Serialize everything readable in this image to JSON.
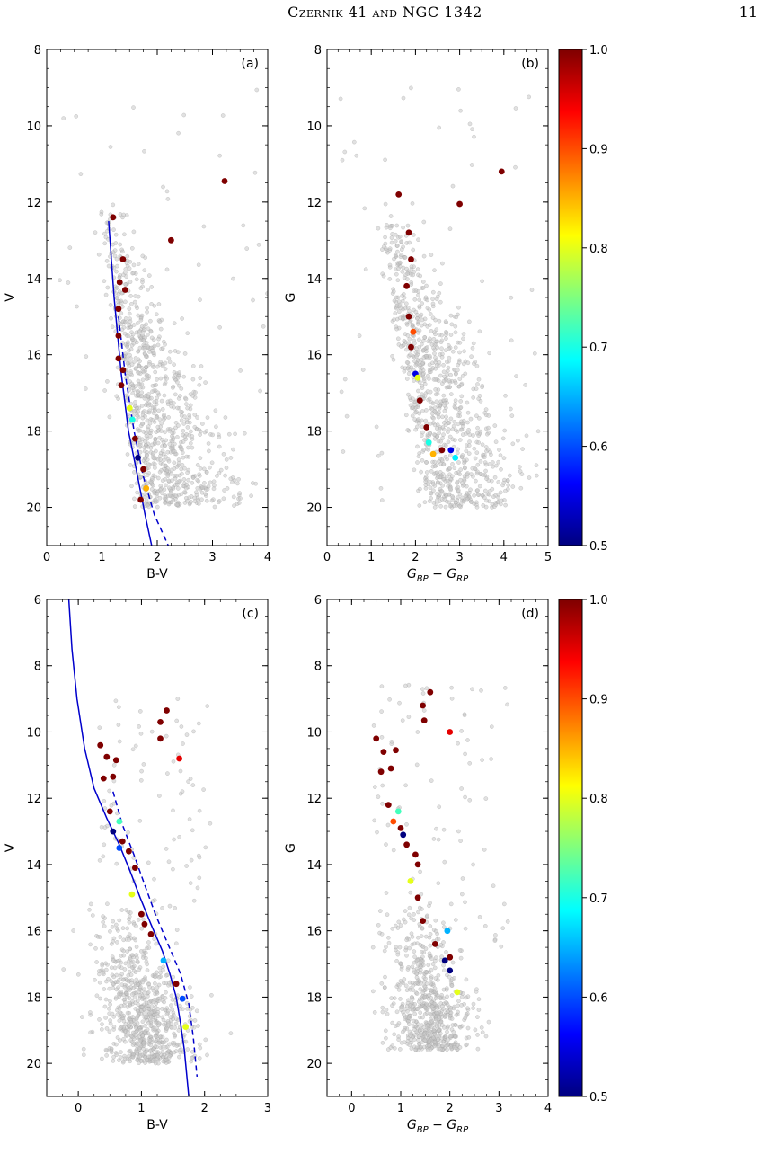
{
  "page": {
    "running_title": "Czernik 41 and NGC 1342",
    "page_number": "11"
  },
  "colorbar": {
    "colors": [
      "#00007f",
      "#0000ff",
      "#007fff",
      "#00ffff",
      "#7fff7f",
      "#ffff00",
      "#ff7f00",
      "#ff0000",
      "#7f0000"
    ],
    "ticks": [
      "0.5",
      "0.6",
      "0.7",
      "0.8",
      "0.9",
      "1.0"
    ],
    "range": [
      0.5,
      1.0
    ]
  },
  "chart_data": [
    {
      "type": "scatter",
      "panel_label": "(a)",
      "xlabel": "B-V",
      "ylabel": "V",
      "xlim": [
        0,
        4
      ],
      "ylim": [
        21,
        8
      ],
      "y_inverted": true,
      "xticks": [
        "0",
        "1",
        "2",
        "3",
        "4"
      ],
      "yticks": [
        "8",
        "10",
        "12",
        "14",
        "16",
        "18",
        "20"
      ],
      "field_color": "#999999",
      "members": [
        {
          "x": 3.22,
          "y": 11.45,
          "p": 1.0
        },
        {
          "x": 1.2,
          "y": 12.4,
          "p": 1.0
        },
        {
          "x": 2.25,
          "y": 13.0,
          "p": 1.0
        },
        {
          "x": 1.38,
          "y": 13.5,
          "p": 1.0
        },
        {
          "x": 1.32,
          "y": 14.1,
          "p": 1.0
        },
        {
          "x": 1.42,
          "y": 14.3,
          "p": 1.0
        },
        {
          "x": 1.3,
          "y": 14.8,
          "p": 1.0
        },
        {
          "x": 1.3,
          "y": 15.5,
          "p": 1.0
        },
        {
          "x": 1.3,
          "y": 16.1,
          "p": 1.0
        },
        {
          "x": 1.38,
          "y": 16.4,
          "p": 1.0
        },
        {
          "x": 1.35,
          "y": 16.8,
          "p": 1.0
        },
        {
          "x": 1.5,
          "y": 17.4,
          "p": 0.8
        },
        {
          "x": 1.55,
          "y": 17.7,
          "p": 0.7
        },
        {
          "x": 1.6,
          "y": 18.2,
          "p": 1.0
        },
        {
          "x": 1.65,
          "y": 18.7,
          "p": 0.5
        },
        {
          "x": 1.75,
          "y": 19.0,
          "p": 1.0
        },
        {
          "x": 1.8,
          "y": 19.5,
          "p": 0.85
        },
        {
          "x": 1.7,
          "y": 19.8,
          "p": 1.0
        }
      ],
      "isochrones": [
        {
          "style": "solid",
          "color": "#0000cc",
          "x": [
            1.12,
            1.22,
            1.35,
            1.48,
            1.62,
            1.78,
            1.9
          ],
          "y": [
            12.5,
            14.5,
            16.5,
            18.0,
            19.0,
            20.2,
            21.0
          ]
        },
        {
          "style": "dashed",
          "color": "#0000cc",
          "x": [
            1.3,
            1.42,
            1.58,
            1.75,
            1.95,
            2.2
          ],
          "y": [
            15.0,
            16.5,
            18.0,
            19.2,
            20.2,
            21.0
          ]
        }
      ]
    },
    {
      "type": "scatter",
      "panel_label": "(b)",
      "xlabel": "G_BP − G_RP",
      "ylabel": "G",
      "xlim": [
        0,
        5
      ],
      "ylim": [
        21,
        8
      ],
      "y_inverted": true,
      "xticks": [
        "0",
        "1",
        "2",
        "3",
        "4",
        "5"
      ],
      "yticks": [
        "8",
        "10",
        "12",
        "14",
        "16",
        "18",
        "20"
      ],
      "field_color": "#999999",
      "members": [
        {
          "x": 3.95,
          "y": 11.2,
          "p": 1.0
        },
        {
          "x": 1.62,
          "y": 11.8,
          "p": 1.0
        },
        {
          "x": 3.0,
          "y": 12.05,
          "p": 1.0
        },
        {
          "x": 1.85,
          "y": 12.8,
          "p": 1.0
        },
        {
          "x": 1.9,
          "y": 13.5,
          "p": 1.0
        },
        {
          "x": 1.8,
          "y": 14.2,
          "p": 1.0
        },
        {
          "x": 1.85,
          "y": 15.0,
          "p": 1.0
        },
        {
          "x": 1.95,
          "y": 15.4,
          "p": 0.9
        },
        {
          "x": 1.9,
          "y": 15.8,
          "p": 1.0
        },
        {
          "x": 2.0,
          "y": 16.5,
          "p": 0.55
        },
        {
          "x": 2.05,
          "y": 16.6,
          "p": 0.8
        },
        {
          "x": 2.1,
          "y": 17.2,
          "p": 1.0
        },
        {
          "x": 2.25,
          "y": 17.9,
          "p": 1.0
        },
        {
          "x": 2.3,
          "y": 18.3,
          "p": 0.7
        },
        {
          "x": 2.4,
          "y": 18.6,
          "p": 0.85
        },
        {
          "x": 2.6,
          "y": 18.5,
          "p": 1.0
        },
        {
          "x": 2.8,
          "y": 18.5,
          "p": 0.55
        },
        {
          "x": 2.9,
          "y": 18.7,
          "p": 0.68
        }
      ]
    },
    {
      "type": "scatter",
      "panel_label": "(c)",
      "xlabel": "B-V",
      "ylabel": "V",
      "xlim": [
        -0.5,
        3
      ],
      "ylim": [
        21,
        6
      ],
      "y_inverted": true,
      "xticks": [
        "0",
        "1",
        "2",
        "3"
      ],
      "yticks": [
        "6",
        "8",
        "10",
        "12",
        "14",
        "16",
        "18",
        "20"
      ],
      "field_color": "#999999",
      "members": [
        {
          "x": 1.4,
          "y": 9.35,
          "p": 1.0
        },
        {
          "x": 1.3,
          "y": 9.7,
          "p": 1.0
        },
        {
          "x": 1.3,
          "y": 10.2,
          "p": 1.0
        },
        {
          "x": 1.6,
          "y": 10.8,
          "p": 0.95
        },
        {
          "x": 0.35,
          "y": 10.4,
          "p": 1.0
        },
        {
          "x": 0.45,
          "y": 10.75,
          "p": 1.0
        },
        {
          "x": 0.6,
          "y": 10.85,
          "p": 1.0
        },
        {
          "x": 0.4,
          "y": 11.4,
          "p": 1.0
        },
        {
          "x": 0.55,
          "y": 11.35,
          "p": 1.0
        },
        {
          "x": 0.5,
          "y": 12.4,
          "p": 1.0
        },
        {
          "x": 0.65,
          "y": 12.7,
          "p": 0.72
        },
        {
          "x": 0.55,
          "y": 13.0,
          "p": 0.5
        },
        {
          "x": 0.7,
          "y": 13.3,
          "p": 1.0
        },
        {
          "x": 0.65,
          "y": 13.5,
          "p": 0.6
        },
        {
          "x": 0.8,
          "y": 13.6,
          "p": 1.0
        },
        {
          "x": 0.9,
          "y": 14.1,
          "p": 1.0
        },
        {
          "x": 0.85,
          "y": 14.9,
          "p": 0.8
        },
        {
          "x": 1.0,
          "y": 15.5,
          "p": 1.0
        },
        {
          "x": 1.05,
          "y": 15.8,
          "p": 1.0
        },
        {
          "x": 1.15,
          "y": 16.1,
          "p": 1.0
        },
        {
          "x": 1.35,
          "y": 16.9,
          "p": 0.65
        },
        {
          "x": 1.55,
          "y": 17.6,
          "p": 1.0
        },
        {
          "x": 1.65,
          "y": 18.05,
          "p": 0.6
        },
        {
          "x": 1.7,
          "y": 18.9,
          "p": 0.8
        }
      ],
      "isochrones": [
        {
          "style": "solid",
          "color": "#0000cc",
          "x": [
            -0.15,
            -0.1,
            -0.02,
            0.1,
            0.25,
            0.45,
            0.65,
            0.82,
            0.98,
            1.15,
            1.33,
            1.45,
            1.55,
            1.62,
            1.68,
            1.75
          ],
          "y": [
            6.0,
            7.5,
            9.0,
            10.5,
            11.7,
            12.6,
            13.4,
            14.2,
            15.0,
            15.8,
            16.6,
            17.3,
            18.0,
            18.8,
            19.6,
            21.0
          ]
        },
        {
          "style": "dashed",
          "color": "#0000cc",
          "x": [
            0.55,
            0.7,
            0.88,
            1.05,
            1.22,
            1.42,
            1.62,
            1.75,
            1.82,
            1.88
          ],
          "y": [
            11.8,
            12.8,
            13.7,
            14.6,
            15.5,
            16.4,
            17.3,
            18.2,
            19.2,
            20.4
          ]
        }
      ]
    },
    {
      "type": "scatter",
      "panel_label": "(d)",
      "xlabel": "G_BP − G_RP",
      "ylabel": "G",
      "xlim": [
        -0.5,
        4
      ],
      "ylim": [
        21,
        6
      ],
      "y_inverted": true,
      "xticks": [
        "0",
        "1",
        "2",
        "3",
        "4"
      ],
      "yticks": [
        "6",
        "8",
        "10",
        "12",
        "14",
        "16",
        "18",
        "20"
      ],
      "field_color": "#999999",
      "members": [
        {
          "x": 1.6,
          "y": 8.8,
          "p": 1.0
        },
        {
          "x": 1.45,
          "y": 9.2,
          "p": 1.0
        },
        {
          "x": 1.48,
          "y": 9.65,
          "p": 1.0
        },
        {
          "x": 2.0,
          "y": 10.0,
          "p": 0.95
        },
        {
          "x": 0.5,
          "y": 10.2,
          "p": 1.0
        },
        {
          "x": 0.65,
          "y": 10.6,
          "p": 1.0
        },
        {
          "x": 0.9,
          "y": 10.55,
          "p": 1.0
        },
        {
          "x": 0.6,
          "y": 11.2,
          "p": 1.0
        },
        {
          "x": 0.8,
          "y": 11.1,
          "p": 1.0
        },
        {
          "x": 0.75,
          "y": 12.2,
          "p": 1.0
        },
        {
          "x": 0.95,
          "y": 12.4,
          "p": 0.72
        },
        {
          "x": 0.85,
          "y": 12.7,
          "p": 0.9
        },
        {
          "x": 1.0,
          "y": 12.9,
          "p": 1.0
        },
        {
          "x": 1.05,
          "y": 13.1,
          "p": 0.5
        },
        {
          "x": 1.12,
          "y": 13.4,
          "p": 1.0
        },
        {
          "x": 1.3,
          "y": 13.7,
          "p": 1.0
        },
        {
          "x": 1.35,
          "y": 14.0,
          "p": 1.0
        },
        {
          "x": 1.2,
          "y": 14.5,
          "p": 0.8
        },
        {
          "x": 1.35,
          "y": 15.0,
          "p": 1.0
        },
        {
          "x": 1.45,
          "y": 15.7,
          "p": 1.0
        },
        {
          "x": 1.95,
          "y": 16.0,
          "p": 0.65
        },
        {
          "x": 1.7,
          "y": 16.4,
          "p": 1.0
        },
        {
          "x": 2.0,
          "y": 16.8,
          "p": 1.0
        },
        {
          "x": 1.9,
          "y": 16.9,
          "p": 0.5
        },
        {
          "x": 2.0,
          "y": 17.2,
          "p": 0.5
        },
        {
          "x": 2.15,
          "y": 17.85,
          "p": 0.8
        }
      ]
    }
  ]
}
